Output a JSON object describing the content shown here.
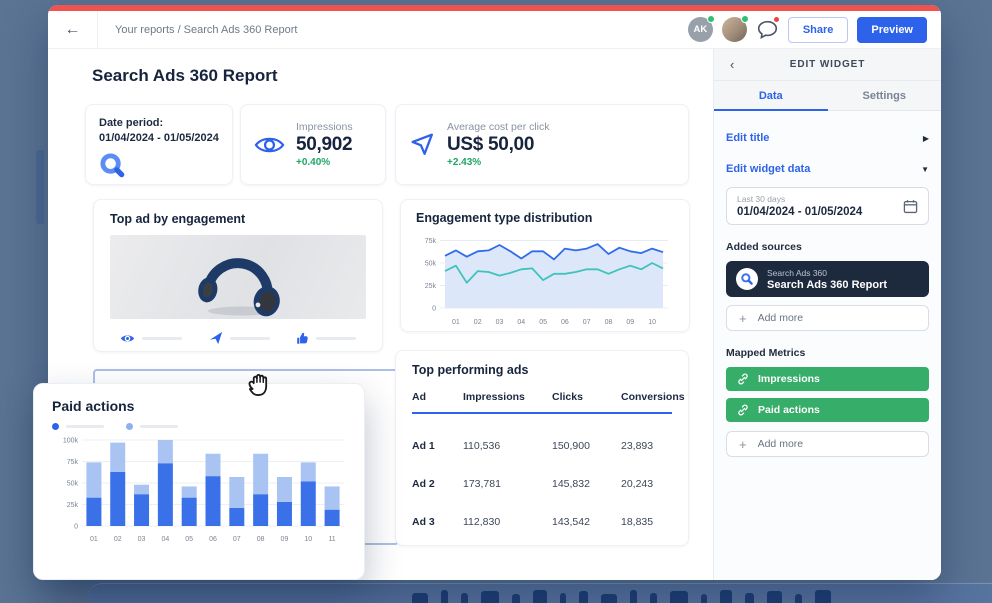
{
  "icons": {
    "back_arrow": "←",
    "chevron_left": "‹",
    "caret_right": "▶",
    "caret_down": "▼",
    "plus": "+"
  },
  "colors": {
    "accent_blue": "#2d62ea",
    "accent_red": "#ef5350",
    "green_metric": "#36ad68",
    "delta_green": "#1fa566",
    "line_blue": "#2f6bea",
    "line_teal": "#3fc3bb",
    "bar_dark": "#3a71e8",
    "bar_light": "#a9c4f2",
    "source_navy": "#1d2a3e",
    "desktop_bg": "#5b7494"
  },
  "window": {
    "topbar": {
      "breadcrumb": "Your reports / Search Ads 360 Report",
      "avatar_initials": "AK",
      "share_label": "Share",
      "preview_label": "Preview"
    },
    "report": {
      "title": "Search Ads 360 Report",
      "date_card": {
        "label": "Date period:",
        "range": "01/04/2024 - 01/05/2024"
      },
      "kpis": [
        {
          "icon": "eye-icon",
          "label": "Impressions",
          "value": "50,902",
          "delta": "+0.40%"
        },
        {
          "icon": "cursor-icon",
          "label": "Average cost per click",
          "value": "US$ 50,00",
          "delta": "+2.43%"
        }
      ],
      "top_ad_title": "Top ad by engagement",
      "engagement_title": "Engagement type distribution",
      "table": {
        "title": "Top performing ads",
        "columns": [
          "Ad",
          "Impressions",
          "Clicks",
          "Conversions"
        ],
        "rows": [
          [
            "Ad 1",
            "110,536",
            "150,900",
            "23,893"
          ],
          [
            "Ad 2",
            "173,781",
            "145,832",
            "20,243"
          ],
          [
            "Ad 3",
            "112,830",
            "143,542",
            "18,835"
          ]
        ]
      }
    },
    "sidebar": {
      "title": "EDIT WIDGET",
      "tabs": [
        {
          "label": "Data"
        },
        {
          "label": "Settings"
        }
      ],
      "edit_title_label": "Edit title",
      "edit_widget_data_label": "Edit widget data",
      "date_preset": "Last 30 days",
      "date_range": "01/04/2024 - 01/05/2024",
      "added_sources_label": "Added sources",
      "source": {
        "provider": "Search Ads 360",
        "name": "Search Ads 360 Report"
      },
      "add_more_label": "Add more",
      "mapped_metrics_label": "Mapped Metrics",
      "metrics": [
        "Impressions",
        "Paid actions"
      ]
    },
    "floating_widget": {
      "title": "Paid actions"
    }
  },
  "chart_data": [
    {
      "id": "engagement",
      "type": "line",
      "title": "Engagement type distribution",
      "x_ticks": [
        "01",
        "02",
        "03",
        "04",
        "05",
        "06",
        "07",
        "08",
        "09",
        "10"
      ],
      "y_ticks": [
        "75k",
        "50k",
        "25k",
        "0"
      ],
      "ylim": [
        0,
        80000
      ],
      "values_unit": "thousands",
      "grid": true,
      "legend": "none",
      "area_fill": "#dce7f9",
      "series": [
        {
          "name": "impressions-line",
          "color": "#2f6bea",
          "values": [
            58,
            64,
            57,
            63,
            64,
            70,
            63,
            55,
            63,
            63,
            54,
            66,
            64,
            66,
            71,
            60,
            67,
            63,
            61,
            66,
            62
          ]
        },
        {
          "name": "paid-actions-line",
          "color": "#3fc3bb",
          "values": [
            41,
            47,
            28,
            41,
            40,
            36,
            39,
            43,
            44,
            31,
            38,
            38,
            40,
            43,
            43,
            38,
            43,
            47,
            43,
            50,
            44
          ]
        }
      ]
    },
    {
      "id": "paid_actions",
      "type": "stacked-bar",
      "title": "Paid actions",
      "categories": [
        "01",
        "02",
        "03",
        "04",
        "05",
        "06",
        "07",
        "08",
        "09",
        "10",
        "11"
      ],
      "y_ticks": [
        "100k",
        "75k",
        "50k",
        "25k",
        "0"
      ],
      "ylim": [
        0,
        100000
      ],
      "values_unit": "thousands",
      "grid": true,
      "legend": "skeleton-dots",
      "series": [
        {
          "name": "segment-bottom",
          "color": "#3a71e8",
          "values": [
            33,
            63,
            37,
            73,
            33,
            58,
            21,
            37,
            28,
            52,
            19
          ]
        },
        {
          "name": "segment-top",
          "color": "#a9c4f2",
          "values": [
            41,
            34,
            11,
            27,
            13,
            26,
            36,
            47,
            29,
            22,
            27
          ]
        }
      ]
    }
  ]
}
